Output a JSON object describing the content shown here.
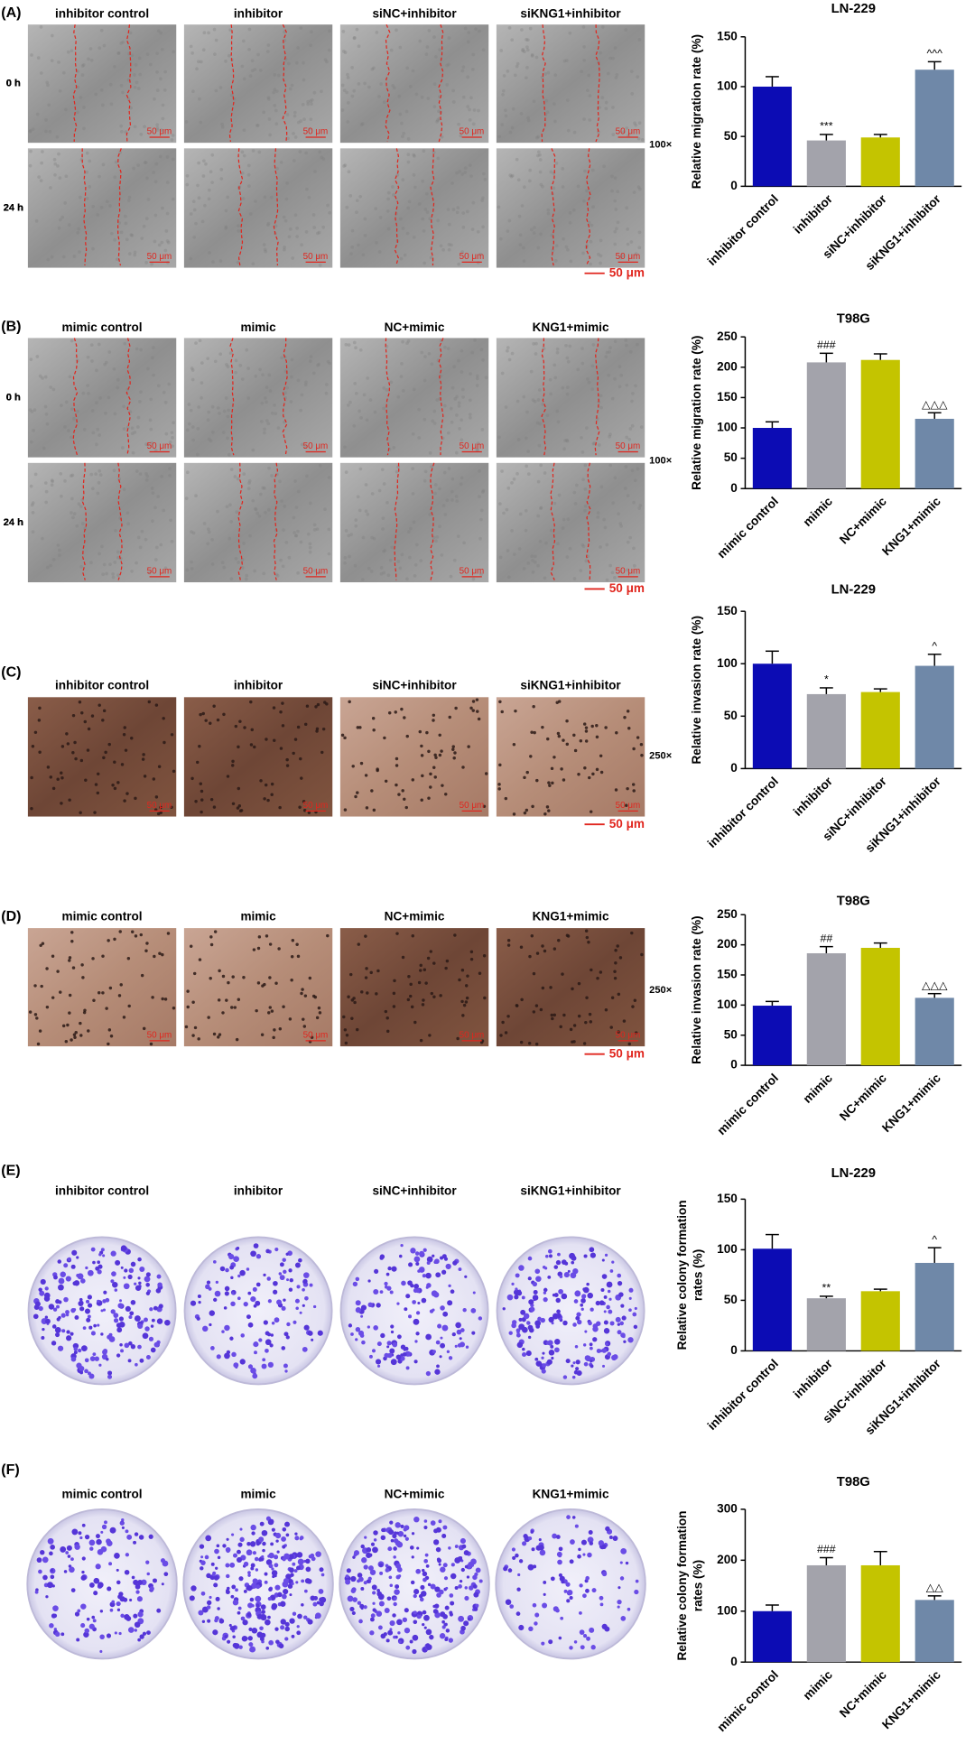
{
  "panels": [
    {
      "label": "(A)",
      "columns": [
        "inhibitor control",
        "inhibitor",
        "siNC+inhibitor",
        "siKNG1+inhibitor"
      ],
      "rows": [
        "0 h",
        "24 h"
      ],
      "magnification": "100×",
      "scale_bar": "50 μm",
      "image_scale": "50 μm"
    },
    {
      "label": "(B)",
      "columns": [
        "mimic control",
        "mimic",
        "NC+mimic",
        "KNG1+mimic"
      ],
      "rows": [
        "0 h",
        "24 h"
      ],
      "magnification": "100×",
      "scale_bar": "50 μm",
      "image_scale": "50 μm"
    },
    {
      "label": "(C)",
      "columns": [
        "inhibitor control",
        "inhibitor",
        "siNC+inhibitor",
        "siKNG1+inhibitor"
      ],
      "magnification": "250×",
      "scale_bar": "50 μm",
      "image_scale": "50 μm"
    },
    {
      "label": "(D)",
      "columns": [
        "mimic control",
        "mimic",
        "NC+mimic",
        "KNG1+mimic"
      ],
      "magnification": "250×",
      "scale_bar": "50 μm",
      "image_scale": "50 μm"
    },
    {
      "label": "(E)",
      "columns": [
        "inhibitor control",
        "inhibitor",
        "siNC+inhibitor",
        "siKNG1+inhibitor"
      ]
    },
    {
      "label": "(F)",
      "columns": [
        "mimic control",
        "mimic",
        "NC+mimic",
        "KNG1+mimic"
      ]
    }
  ],
  "chart_data": [
    {
      "type": "bar",
      "title": "LN-229",
      "ylabel": "Relative migration rate (%)",
      "categories": [
        "inhibitor control",
        "inhibitor",
        "siNC+inhibitor",
        "siKNG1+inhibitor"
      ],
      "values": [
        100,
        46,
        49,
        117
      ],
      "errors": [
        10,
        6,
        3,
        8
      ],
      "annotations": [
        null,
        "***",
        null,
        "^^^"
      ],
      "colors": [
        "#0c0cb4",
        "#a3a3ab",
        "#c4c400",
        "#6f88a8"
      ],
      "ylim": [
        0,
        150
      ],
      "yticks": [
        0,
        50,
        100,
        150
      ]
    },
    {
      "type": "bar",
      "title": "T98G",
      "ylabel": "Relative migration rate (%)",
      "categories": [
        "mimic control",
        "mimic",
        "NC+mimic",
        "KNG1+mimic"
      ],
      "values": [
        100,
        208,
        212,
        115
      ],
      "errors": [
        10,
        15,
        10,
        10
      ],
      "annotations": [
        null,
        "###",
        null,
        "△△△"
      ],
      "colors": [
        "#0c0cb4",
        "#a3a3ab",
        "#c4c400",
        "#6f88a8"
      ],
      "ylim": [
        0,
        250
      ],
      "yticks": [
        0,
        50,
        100,
        150,
        200,
        250
      ]
    },
    {
      "type": "bar",
      "title": "LN-229",
      "ylabel": "Relative invasion rate (%)",
      "categories": [
        "inhibitor control",
        "inhibitor",
        "siNC+inhibitor",
        "siKNG1+inhibitor"
      ],
      "values": [
        100,
        71,
        73,
        98
      ],
      "errors": [
        12,
        6,
        3,
        11
      ],
      "annotations": [
        null,
        "*",
        null,
        "^"
      ],
      "colors": [
        "#0c0cb4",
        "#a3a3ab",
        "#c4c400",
        "#6f88a8"
      ],
      "ylim": [
        0,
        150
      ],
      "yticks": [
        0,
        50,
        100,
        150
      ]
    },
    {
      "type": "bar",
      "title": "T98G",
      "ylabel": "Relative invasion rate (%)",
      "categories": [
        "mimic control",
        "mimic",
        "NC+mimic",
        "KNG1+mimic"
      ],
      "values": [
        99,
        186,
        195,
        112
      ],
      "errors": [
        7,
        11,
        8,
        7
      ],
      "annotations": [
        null,
        "##",
        null,
        "△△△"
      ],
      "colors": [
        "#0c0cb4",
        "#a3a3ab",
        "#c4c400",
        "#6f88a8"
      ],
      "ylim": [
        0,
        250
      ],
      "yticks": [
        0,
        50,
        100,
        150,
        200,
        250
      ]
    },
    {
      "type": "bar",
      "title": "LN-229",
      "ylabel": [
        "Relative colony formation",
        "rates (%)"
      ],
      "categories": [
        "inhibitor control",
        "inhibitor",
        "siNC+inhibitor",
        "siKNG1+inhibitor"
      ],
      "values": [
        101,
        52,
        59,
        87
      ],
      "errors": [
        14,
        2,
        2,
        15
      ],
      "annotations": [
        null,
        "**",
        null,
        "^"
      ],
      "colors": [
        "#0c0cb4",
        "#a3a3ab",
        "#c4c400",
        "#6f88a8"
      ],
      "ylim": [
        0,
        150
      ],
      "yticks": [
        0,
        50,
        100,
        150
      ]
    },
    {
      "type": "bar",
      "title": "T98G",
      "ylabel": [
        "Relative colony formation",
        "rates (%)"
      ],
      "categories": [
        "mimic control",
        "mimic",
        "NC+mimic",
        "KNG1+mimic"
      ],
      "values": [
        100,
        190,
        190,
        122
      ],
      "errors": [
        12,
        15,
        27,
        8
      ],
      "annotations": [
        null,
        "###",
        null,
        "△△"
      ],
      "colors": [
        "#0c0cb4",
        "#a3a3ab",
        "#c4c400",
        "#6f88a8"
      ],
      "ylim": [
        0,
        300
      ],
      "yticks": [
        0,
        100,
        200,
        300
      ]
    }
  ]
}
